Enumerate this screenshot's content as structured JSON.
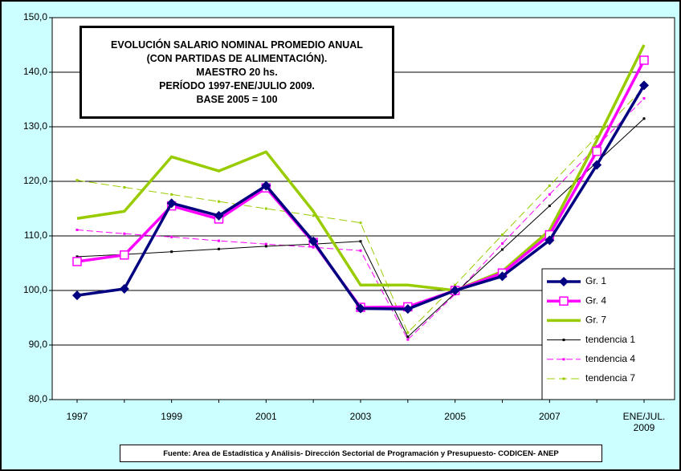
{
  "chart_data": {
    "type": "line",
    "title_lines": [
      "EVOLUCIÓN SALARIO NOMINAL PROMEDIO ANUAL",
      "(CON PARTIDAS DE ALIMENTACIÓN).",
      "MAESTRO 20 hs.",
      "PERÍODO 1997-ENE/JULIO 2009.",
      "BASE 2005 = 100"
    ],
    "source": "Fuente: Area de Estadística y Análisis- Dirección Sectorial de Programación y Presupuesto- CODICEN- ANEP",
    "categories": [
      "1997",
      null,
      "1999",
      null,
      "2001",
      null,
      "2003",
      null,
      "2005",
      null,
      "2007",
      null,
      "ENE/JUL. 2009"
    ],
    "ylim": [
      80,
      150
    ],
    "yticks": [
      {
        "value": 80,
        "label": "80,0"
      },
      {
        "value": 90,
        "label": "90,0"
      },
      {
        "value": 100,
        "label": "100,0"
      },
      {
        "value": 110,
        "label": "110,0"
      },
      {
        "value": 120,
        "label": "120,0"
      },
      {
        "value": 130,
        "label": "130,0"
      },
      {
        "value": 140,
        "label": "140,0"
      },
      {
        "value": 150,
        "label": "150,0"
      }
    ],
    "grid": true,
    "legend": "lower-right",
    "series": [
      {
        "name": "Gr. 1",
        "color": "#000080",
        "marker": "diamond",
        "values": [
          99.1,
          100.3,
          116,
          113.7,
          119.2,
          109,
          96.7,
          96.6,
          100,
          102.6,
          109.2,
          123,
          137.6
        ]
      },
      {
        "name": "Gr. 4",
        "color": "#ff00ff",
        "marker": "square",
        "values": [
          105.3,
          106.5,
          115.5,
          113.1,
          118.8,
          108.8,
          96.9,
          97,
          100,
          103.2,
          110.2,
          125.5,
          142.2
        ]
      },
      {
        "name": "Gr. 7",
        "color": "#99cc00",
        "marker": "none",
        "values": [
          113.2,
          114.5,
          124.5,
          121.9,
          125.4,
          114.5,
          101,
          101,
          100,
          103.5,
          111,
          127.5,
          145
        ]
      },
      {
        "name": "tendencia 1",
        "color": "#000000",
        "marker": "dot",
        "values": [
          106.2,
          106.6,
          107.1,
          107.6,
          108.1,
          108.5,
          109,
          91.5,
          99.5,
          107.5,
          115.5,
          123.5,
          131.5
        ]
      },
      {
        "name": "tendencia 4",
        "color": "#ff00ff",
        "marker": "dot",
        "values": [
          111.1,
          110.4,
          109.8,
          109.1,
          108.5,
          107.9,
          107.3,
          91,
          99.3,
          108.6,
          117.6,
          126.4,
          135.2
        ]
      },
      {
        "name": "tendencia 7",
        "color": "#99cc00",
        "marker": "dot",
        "values": [
          120.2,
          118.9,
          117.6,
          116.3,
          115,
          113.7,
          112.4,
          92.3,
          101,
          110.2,
          119.2,
          128.2,
          137.2
        ]
      }
    ]
  }
}
